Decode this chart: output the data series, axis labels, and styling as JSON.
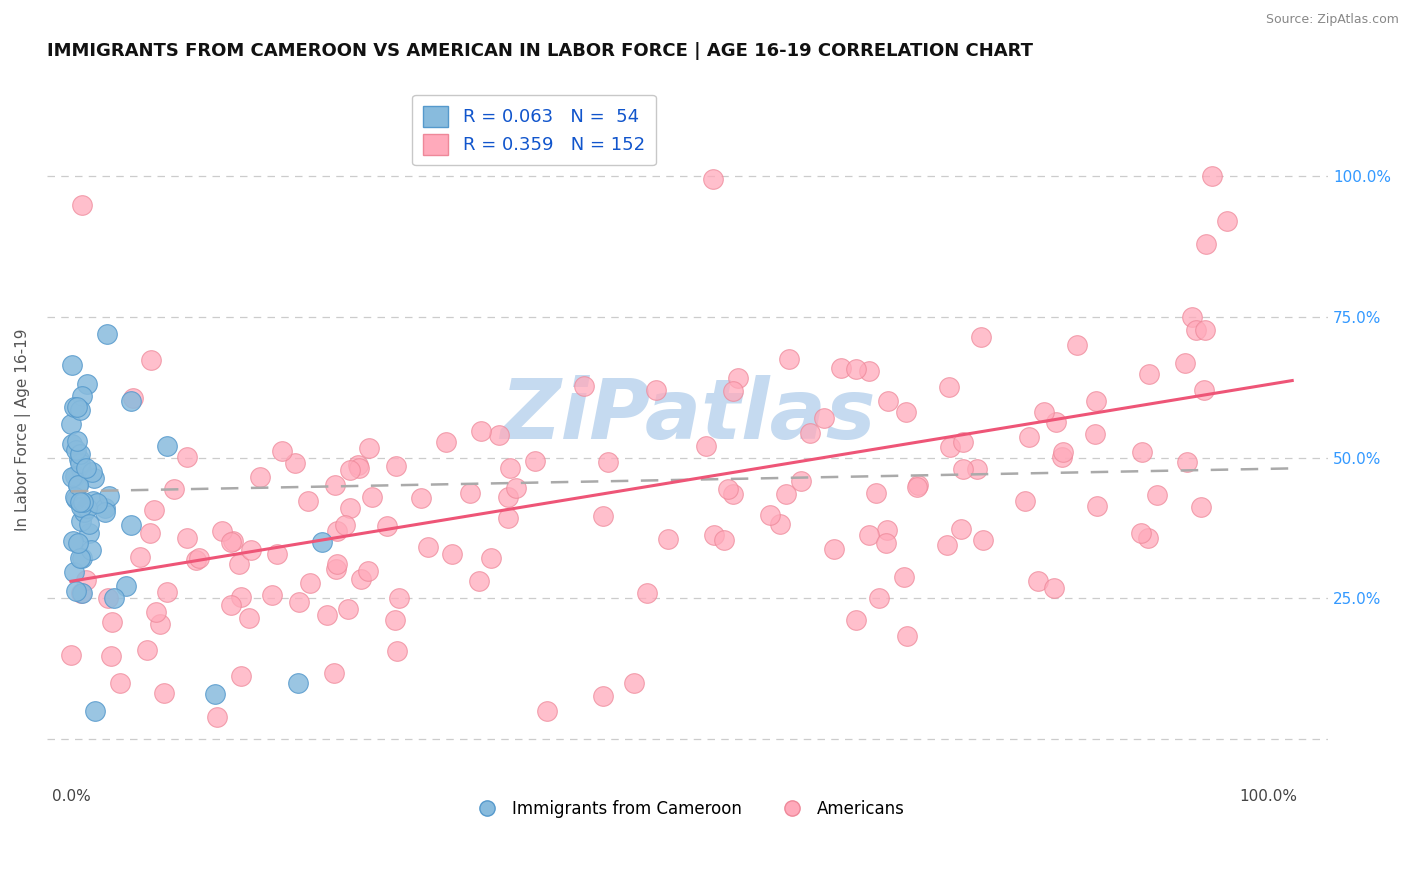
{
  "title": "IMMIGRANTS FROM CAMEROON VS AMERICAN IN LABOR FORCE | AGE 16-19 CORRELATION CHART",
  "source": "Source: ZipAtlas.com",
  "ylabel": "In Labor Force | Age 16-19",
  "xlim": [
    -0.02,
    1.05
  ],
  "ylim": [
    -0.08,
    1.18
  ],
  "yticks": [
    0.0,
    0.25,
    0.5,
    0.75,
    1.0
  ],
  "ytick_labels_right": [
    "",
    "25.0%",
    "50.0%",
    "75.0%",
    "100.0%"
  ],
  "xticks": [
    0.0,
    1.0
  ],
  "xtick_labels": [
    "0.0%",
    "100.0%"
  ],
  "legend_blue_label": "R = 0.063   N =  54",
  "legend_pink_label": "R = 0.359   N = 152",
  "legend_group1": "Immigrants from Cameroon",
  "legend_group2": "Americans",
  "R_blue": 0.063,
  "N_blue": 54,
  "R_pink": 0.359,
  "N_pink": 152,
  "blue_color": "#88bbdd",
  "pink_color": "#ffaabb",
  "blue_edge": "#5599cc",
  "pink_edge": "#ee8899",
  "reg_blue_color": "#aaaaaa",
  "reg_pink_color": "#ee5577",
  "background_color": "#ffffff",
  "grid_color": "#cccccc",
  "title_fontsize": 13,
  "ylabel_fontsize": 11,
  "tick_fontsize": 11,
  "watermark_text": "ZiPatlas",
  "watermark_color": "#c5daf0",
  "seed_blue": 7,
  "seed_pink": 13,
  "pink_intercept": 0.28,
  "pink_slope": 0.35,
  "blue_intercept": 0.44,
  "blue_slope": 0.04
}
